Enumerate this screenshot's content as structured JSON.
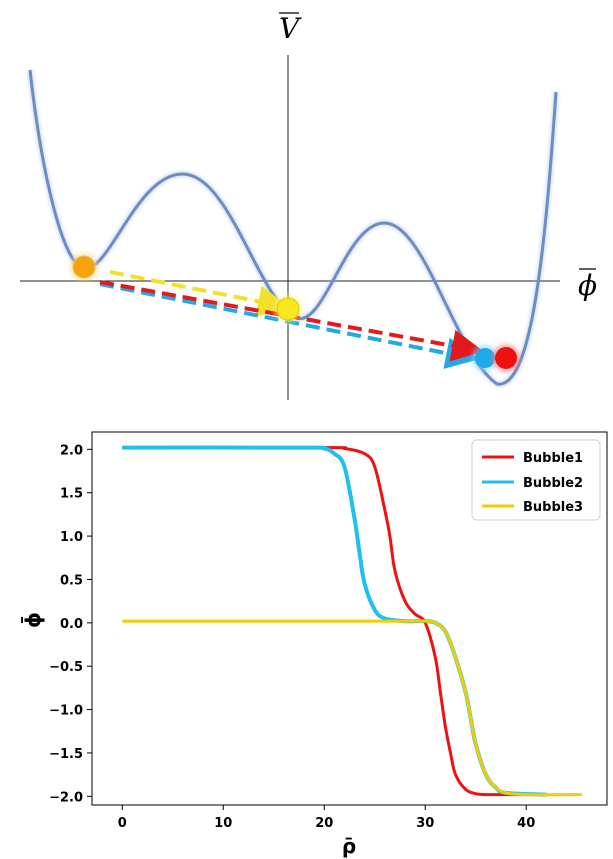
{
  "diagram": {
    "v_label": "V",
    "phi_label": "ϕ",
    "colors": {
      "potential": "#6b8cc4",
      "red": "#e31a1c",
      "blue": "#1fa9e8",
      "yellow": "#f2e02c",
      "orange": "#f5a40f"
    }
  },
  "chart_data": {
    "type": "line",
    "xlabel": "ρ̄",
    "ylabel": "ϕ̄",
    "xlim": [
      -3,
      48
    ],
    "ylim": [
      -2.1,
      2.2
    ],
    "xticks": [
      "0",
      "10",
      "20",
      "30",
      "40"
    ],
    "yticks": [
      "2.0",
      "1.5",
      "1.0",
      "0.5",
      "0.0",
      "−0.5",
      "−1.0",
      "−1.5",
      "−2.0"
    ],
    "legend": "top-right",
    "series": [
      {
        "name": "Bubble1",
        "color": "#ee1111",
        "x": [
          0,
          20,
          22,
          24,
          25,
          26,
          26.5,
          27,
          28,
          29,
          30,
          31,
          31.5,
          32,
          32.5,
          33,
          34,
          35,
          36,
          38,
          42
        ],
        "y": [
          2.02,
          2.02,
          2.01,
          1.95,
          1.8,
          1.3,
          1.0,
          0.6,
          0.25,
          0.1,
          0.0,
          -0.4,
          -0.8,
          -1.2,
          -1.5,
          -1.75,
          -1.92,
          -1.97,
          -1.98,
          -1.98,
          -1.98
        ]
      },
      {
        "name": "Bubble2",
        "color": "#1fbfef",
        "x": [
          0,
          18,
          20,
          21,
          22,
          23,
          23.5,
          24,
          25,
          26,
          28,
          30,
          31,
          32,
          33,
          34,
          34.5,
          35,
          36,
          37,
          38,
          42
        ],
        "y": [
          2.02,
          2.02,
          2.01,
          1.95,
          1.8,
          1.2,
          0.8,
          0.45,
          0.15,
          0.05,
          0.02,
          0.02,
          0.0,
          -0.1,
          -0.4,
          -0.8,
          -1.1,
          -1.4,
          -1.75,
          -1.9,
          -1.96,
          -1.98
        ]
      },
      {
        "name": "Bubble3",
        "color": "#f5cc00",
        "x": [
          0,
          26,
          28,
          30,
          31,
          32,
          33,
          34,
          34.5,
          35,
          36,
          37,
          38,
          40,
          45.5
        ],
        "y": [
          0.02,
          0.02,
          0.02,
          0.02,
          0.0,
          -0.1,
          -0.4,
          -0.8,
          -1.1,
          -1.4,
          -1.75,
          -1.9,
          -1.96,
          -1.98,
          -1.98
        ]
      }
    ]
  }
}
